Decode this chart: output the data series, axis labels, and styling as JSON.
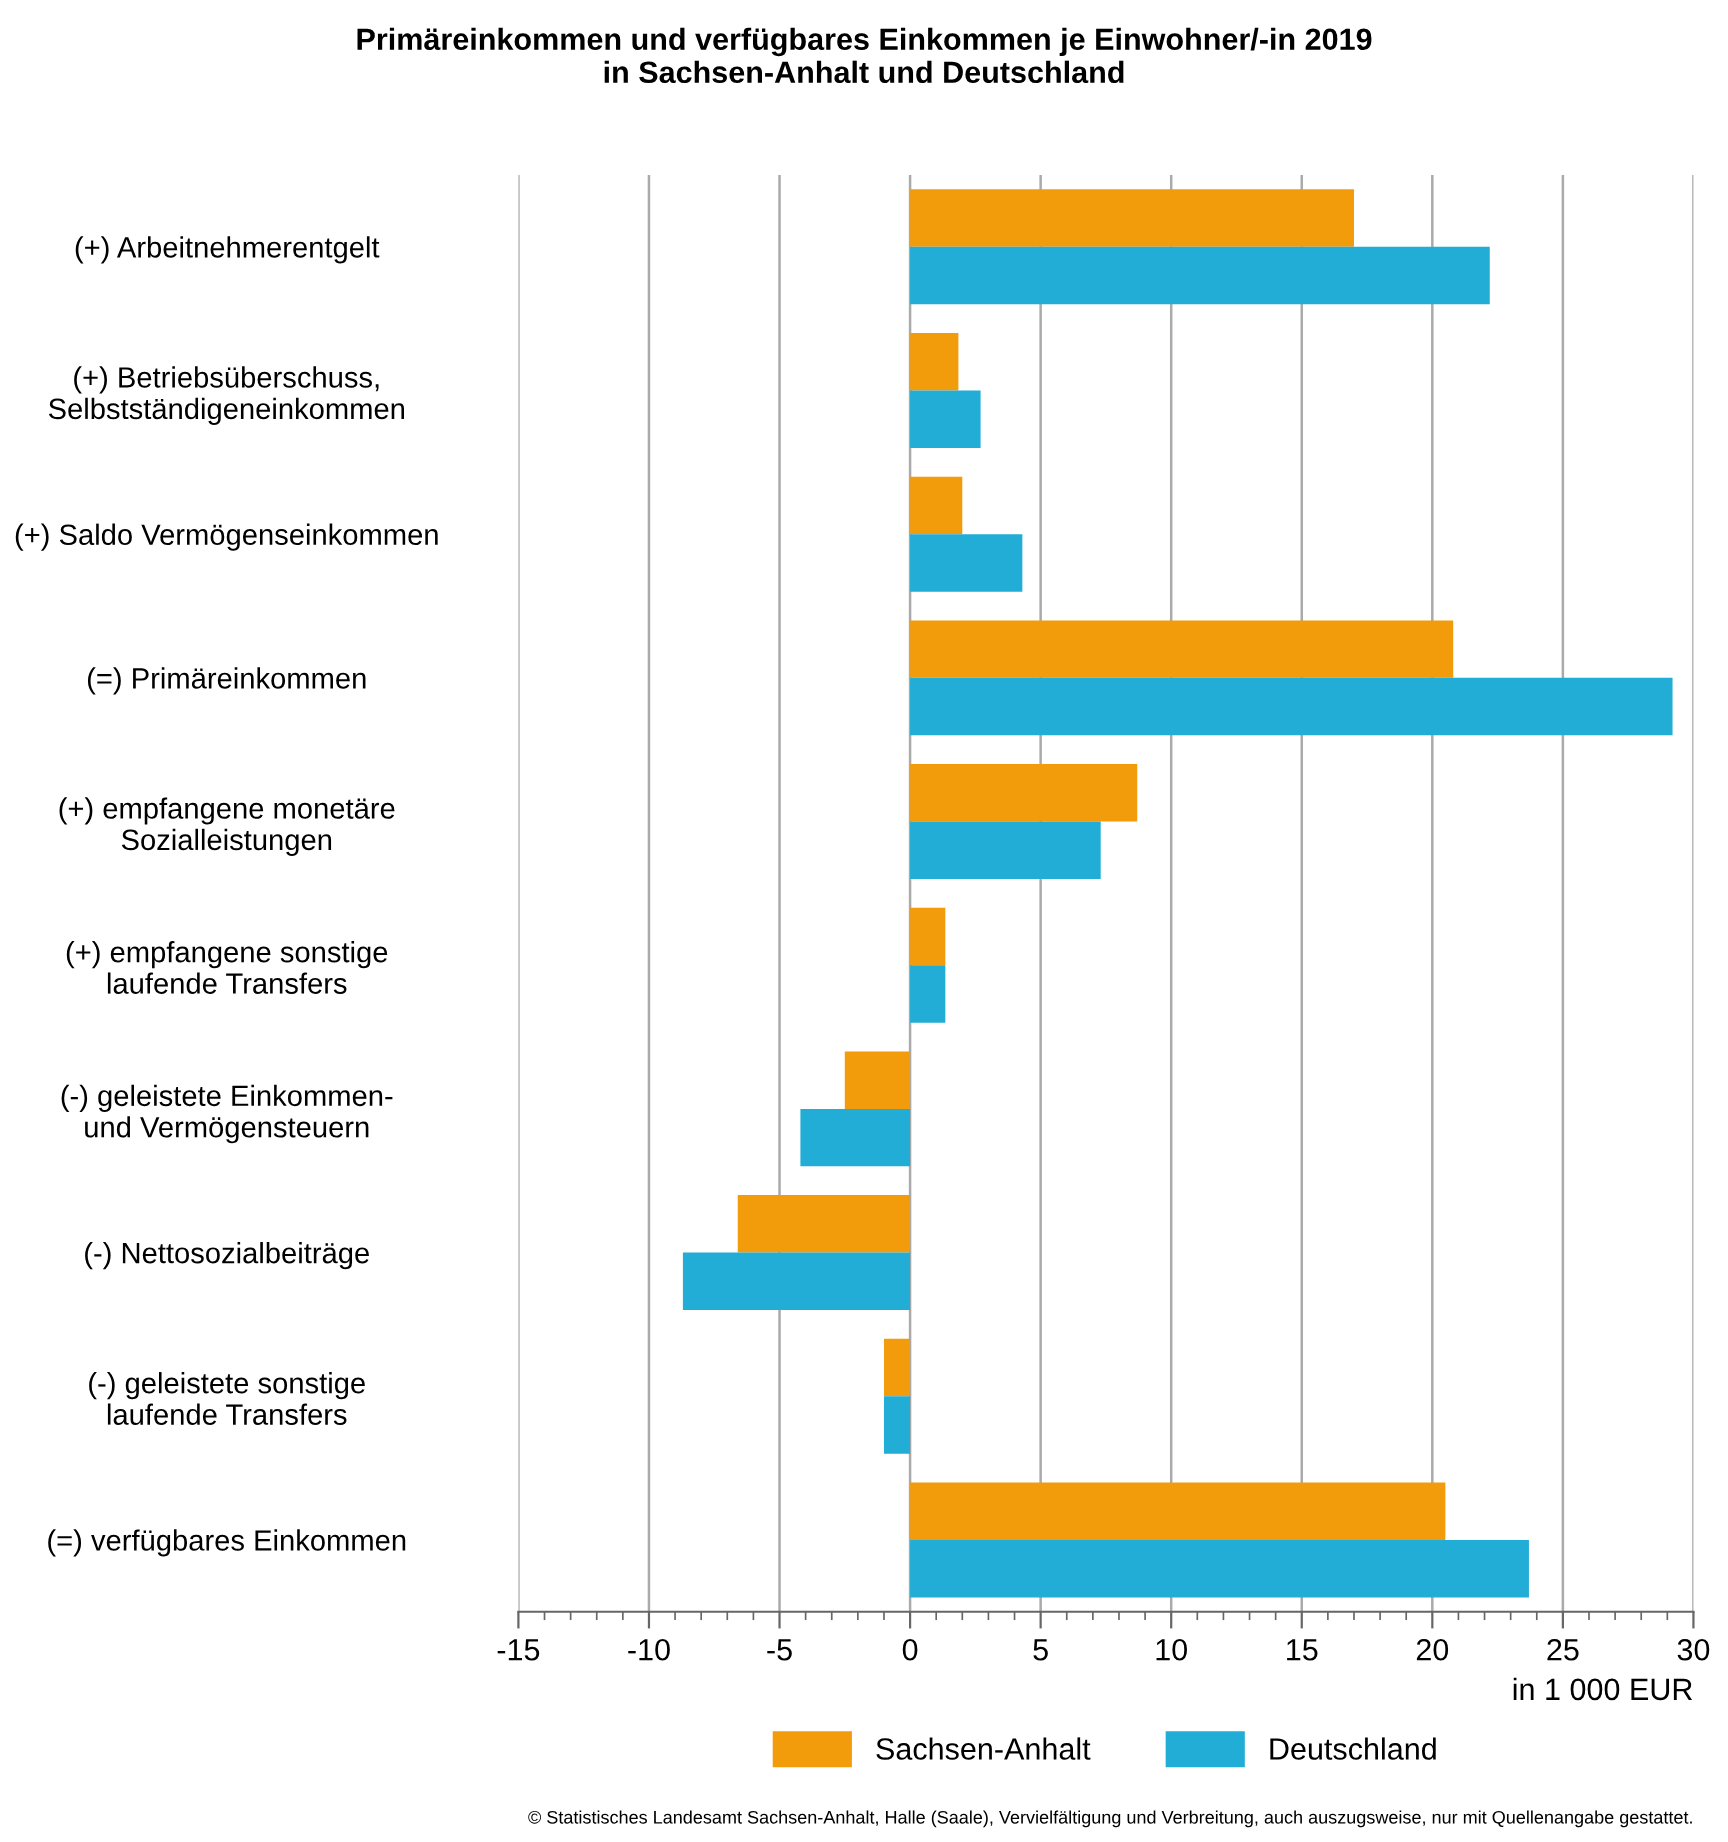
{
  "chart_data": {
    "type": "bar",
    "orientation": "horizontal",
    "title": "Primäreinkommen und verfügbares Einkommen je Einwohner/-in 2019\nin Sachsen-Anhalt und Deutschland",
    "categories": [
      "(+) Arbeitnehmerentgelt",
      "(+) Betriebsüberschuss,\nSelbstständigeneinkommen",
      "(+) Saldo Vermögenseinkommen",
      "(=) Primäreinkommen",
      "(+) empfangene monetäre\nSozialleistungen",
      "(+) empfangene sonstige\nlaufende Transfers",
      "(-) geleistete Einkommen-\nund Vermögensteuern",
      "(-) Nettosozialbeiträge",
      "(-) geleistete sonstige\nlaufende Transfers",
      "(=) verfügbares Einkommen"
    ],
    "series": [
      {
        "name": "Sachsen-Anhalt",
        "color": "#f29c0c",
        "values": [
          17.0,
          1.85,
          2.0,
          20.8,
          8.7,
          1.35,
          -2.5,
          -6.6,
          -1.0,
          20.5
        ]
      },
      {
        "name": "Deutschland",
        "color": "#22add6",
        "values": [
          22.2,
          2.7,
          4.3,
          29.2,
          7.3,
          1.35,
          -4.2,
          -8.7,
          -1.0,
          23.7
        ]
      }
    ],
    "xlim": [
      -15,
      30
    ],
    "xticks": [
      -15,
      -10,
      -5,
      0,
      5,
      10,
      15,
      20,
      25,
      30
    ],
    "xlabel": "in 1 000 EUR",
    "grid": "x",
    "legend": "bottom",
    "annotations": [
      "© Statistisches Landesamt Sachsen-Anhalt, Halle (Saale), Vervielfältigung und Verbreitung, auch auszugsweise, nur mit Quellenangabe gestattet."
    ]
  }
}
